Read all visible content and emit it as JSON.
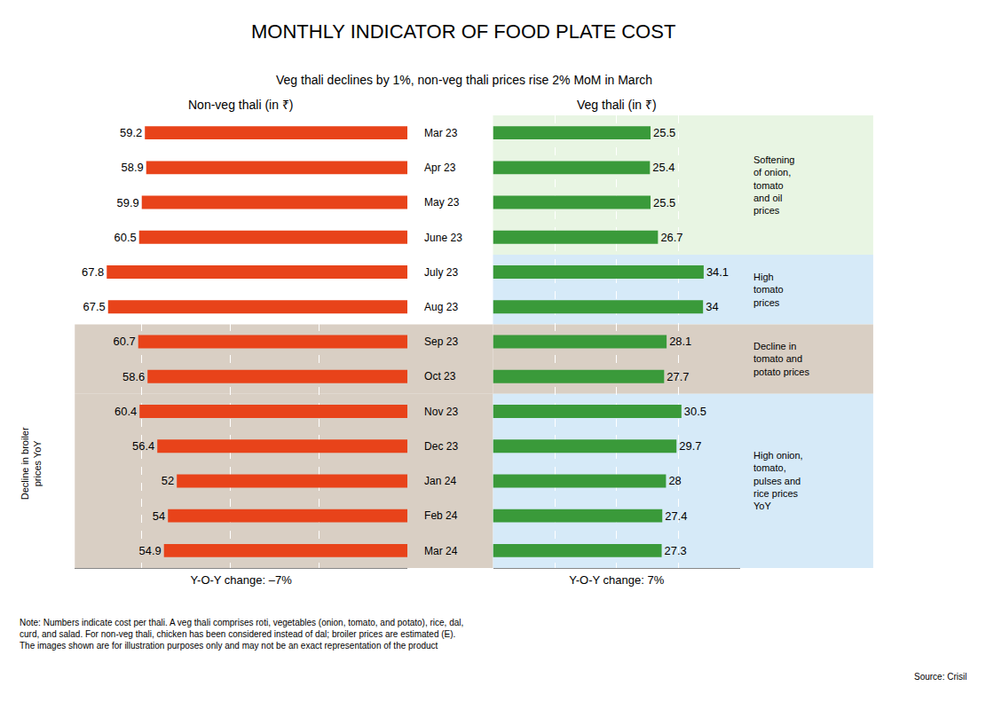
{
  "chart_data": {
    "type": "bar",
    "orientation": "horizontal",
    "title": "MONTHLY INDICATOR OF FOOD PLATE COST",
    "subtitle": "Veg thali declines by 1%, non-veg thali prices rise 2% MoM in March",
    "categories": [
      "Mar 23",
      "Apr 23",
      "May 23",
      "June 23",
      "July 23",
      "Aug 23",
      "Sep 23",
      "Oct 23",
      "Nov 23",
      "Dec 23",
      "Jan 24",
      "Feb 24",
      "Mar 24"
    ],
    "data_labels": true,
    "grid": true,
    "tick_labels": "y",
    "series": [
      {
        "name": "Non-veg thali (in ₹)",
        "color": "#E8431A",
        "values": [
          59.2,
          58.9,
          59.9,
          60.5,
          67.8,
          67.5,
          60.7,
          58.6,
          60.4,
          56.4,
          52.0,
          54.0,
          54.9
        ],
        "xlim": [
          0,
          75
        ],
        "xticks": [
          20,
          40,
          60
        ],
        "xlabel": "Y-O-Y change: –7%",
        "bands": [
          {
            "from": "Mar 23",
            "to": "June 23",
            "color": "#FFFFFF"
          },
          {
            "from": "July 23",
            "to": "Aug 23",
            "color": "#FFFFFF"
          },
          {
            "from": "Sep 23",
            "to": "Oct 23",
            "color": "#D9CFC4"
          },
          {
            "from": "Nov 23",
            "to": "Mar 24",
            "color": "#D9CFC4"
          }
        ],
        "annotations": [
          {
            "text": "Decline in broiler\nprices YoY",
            "from": "Oct 23",
            "to": "Mar 24"
          }
        ]
      },
      {
        "name": "Veg thali (in ₹)",
        "color": "#3A9A3A",
        "values": [
          25.5,
          25.4,
          25.5,
          26.7,
          34.1,
          34.0,
          28.1,
          27.7,
          30.5,
          29.7,
          28.0,
          27.4,
          27.3
        ],
        "xlim": [
          0,
          40
        ],
        "xticks": [
          10,
          20,
          30
        ],
        "xlabel": "Y-O-Y change: 7%",
        "bands": [
          {
            "from": "Mar 23",
            "to": "June 23",
            "color": "#E8F5E3"
          },
          {
            "from": "July 23",
            "to": "Aug 23",
            "color": "#D6EAF8"
          },
          {
            "from": "Sep 23",
            "to": "Oct 23",
            "color": "#D9CFC4"
          },
          {
            "from": "Nov 23",
            "to": "Mar 24",
            "color": "#D6EAF8"
          }
        ],
        "annotations": [
          {
            "text": "Softening\nof onion,\ntomato\nand oil\nprices",
            "from": "Mar 23",
            "to": "June 23"
          },
          {
            "text": "High\ntomato\nprices",
            "from": "July 23",
            "to": "Aug 23"
          },
          {
            "text": "Decline in\ntomato and\npotato prices",
            "from": "Sep 23",
            "to": "Oct 23"
          },
          {
            "text": "High onion,\ntomato,\npulses and\nrice prices\nYoY",
            "from": "Nov 23",
            "to": "Mar 24"
          }
        ]
      }
    ],
    "note": "Note: Numbers indicate cost per thali. A veg thali comprises roti, vegetables (onion, tomato, and potato), rice, dal,\ncurd, and salad. For non-veg thali, chicken has been considered instead of dal; broiler prices are estimated (E).\nThe images shown are for illustration purposes only and may not be an exact representation of the product",
    "source": "Source: Crisil"
  }
}
